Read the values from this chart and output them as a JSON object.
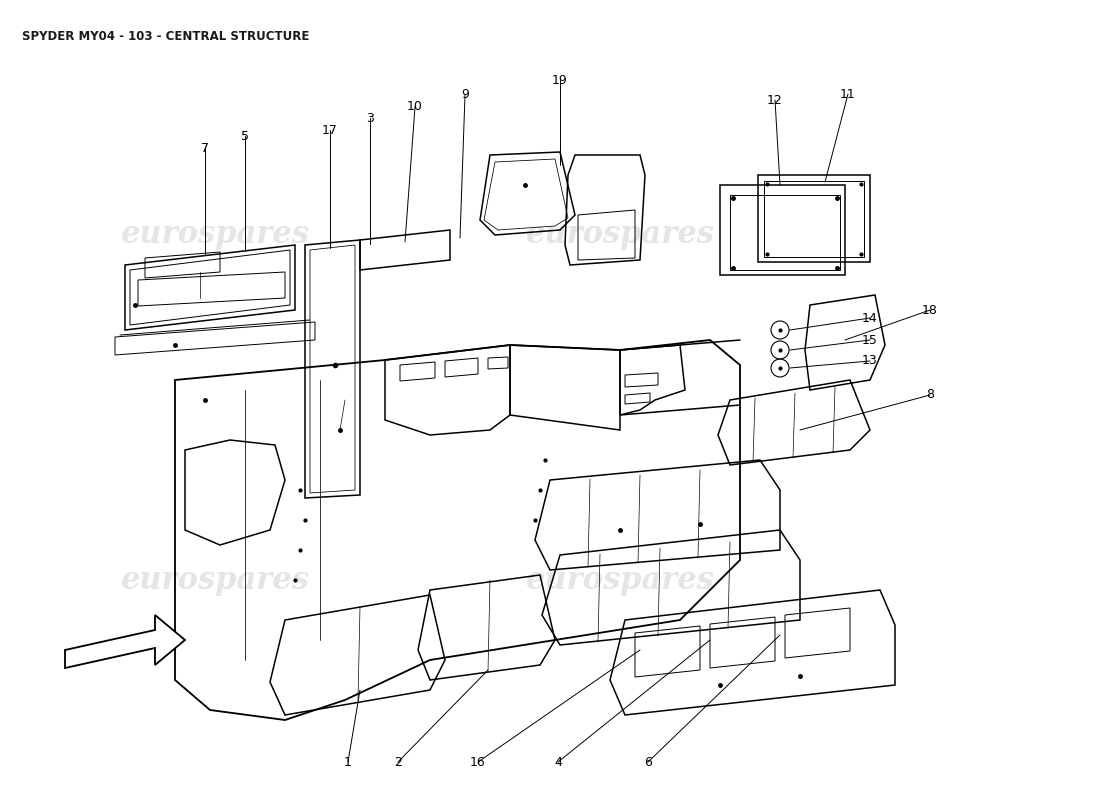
{
  "title": "SPYDER MY04 - 103 - CENTRAL STRUCTURE",
  "title_fontsize": 8.5,
  "bg_color": "#ffffff",
  "line_color": "#000000",
  "watermark_color": "#d0d0d0",
  "watermark_text": "eurospares",
  "label_fontsize": 9.0,
  "lw_main": 1.1,
  "lw_thin": 0.7
}
